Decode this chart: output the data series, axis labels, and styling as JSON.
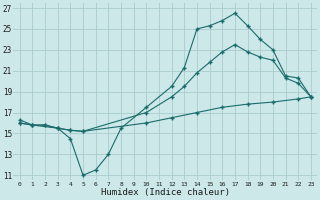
{
  "xlabel": "Humidex (Indice chaleur)",
  "bg_color": "#cce8e8",
  "grid_color": "#aacccc",
  "line_color": "#1a6b6b",
  "line1_x": [
    0,
    1,
    3,
    4,
    5,
    6,
    7,
    8,
    10,
    12,
    13,
    14,
    15,
    16,
    17,
    18,
    19,
    20,
    21,
    22,
    23
  ],
  "line1_y": [
    16.0,
    15.8,
    15.5,
    14.5,
    11.0,
    11.5,
    13.0,
    15.5,
    17.5,
    19.5,
    21.3,
    25.0,
    25.3,
    25.8,
    26.5,
    25.3,
    24.0,
    23.0,
    20.5,
    20.3,
    18.5
  ],
  "line2_x": [
    0,
    1,
    2,
    3,
    4,
    5,
    10,
    12,
    13,
    14,
    15,
    16,
    17,
    18,
    19,
    20,
    21,
    22,
    23
  ],
  "line2_y": [
    16.3,
    15.8,
    15.8,
    15.5,
    15.3,
    15.2,
    17.0,
    18.5,
    19.5,
    20.8,
    21.8,
    22.8,
    23.5,
    22.8,
    22.3,
    22.0,
    20.3,
    19.8,
    18.5
  ],
  "line3_x": [
    0,
    1,
    2,
    3,
    4,
    5,
    10,
    12,
    14,
    16,
    18,
    20,
    22,
    23
  ],
  "line3_y": [
    16.0,
    15.8,
    15.8,
    15.5,
    15.3,
    15.2,
    16.0,
    16.5,
    17.0,
    17.5,
    17.8,
    18.0,
    18.3,
    18.5
  ],
  "xlim": [
    -0.5,
    23.5
  ],
  "ylim": [
    10.5,
    27.5
  ],
  "yticks": [
    11,
    13,
    15,
    17,
    19,
    21,
    23,
    25,
    27
  ],
  "xticks": [
    0,
    1,
    2,
    3,
    4,
    5,
    6,
    7,
    8,
    9,
    10,
    11,
    12,
    13,
    14,
    15,
    16,
    17,
    18,
    19,
    20,
    21,
    22,
    23
  ],
  "xtick_labels": [
    "0",
    "1",
    "2",
    "3",
    "4",
    "5",
    "6",
    "7",
    "8",
    "9",
    "10",
    "11",
    "12",
    "13",
    "14",
    "15",
    "16",
    "17",
    "18",
    "19",
    "20",
    "21",
    "22",
    "23"
  ]
}
